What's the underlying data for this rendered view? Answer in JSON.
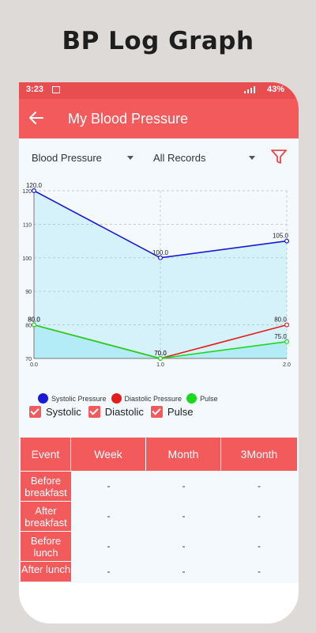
{
  "promo": {
    "title": "BP Log Graph"
  },
  "statusbar": {
    "time": "3:23",
    "battery": "43%"
  },
  "appbar": {
    "title": "My Blood Pressure"
  },
  "filters": {
    "type_selected": "Blood Pressure",
    "range_selected": "All Records"
  },
  "chart_data": {
    "type": "line",
    "x": [
      0.0,
      1.0,
      2.0
    ],
    "x_tick_labels": [
      "0.0",
      "1.0",
      "2.0"
    ],
    "y_tick_labels": [
      "70",
      "80",
      "90",
      "100",
      "110",
      "120"
    ],
    "ylim": [
      70,
      120
    ],
    "xlim": [
      0,
      2
    ],
    "grid": true,
    "legend_position": "bottom-left",
    "series": [
      {
        "name": "Systolic Pressure",
        "values": [
          120.0,
          100.0,
          105.0
        ],
        "labels": [
          "120.0",
          "100.0",
          "105.0"
        ],
        "color": "#1a1ad6",
        "fill": "#d5f1fa"
      },
      {
        "name": "Diastolic Pressure",
        "values": [
          80.0,
          70.0,
          80.0
        ],
        "labels": [
          "80.0",
          "70.0",
          "80.0"
        ],
        "color": "#e51c1c"
      },
      {
        "name": "Pulse",
        "values": [
          80.0,
          70.0,
          75.0
        ],
        "labels": [
          "80.0",
          "70.0",
          "75.0"
        ],
        "color": "#1ed81e",
        "fill": "#b3ecf7"
      }
    ]
  },
  "checks": [
    {
      "label": "Systolic",
      "checked": true
    },
    {
      "label": "Diastolic",
      "checked": true
    },
    {
      "label": "Pulse",
      "checked": true
    }
  ],
  "table": {
    "headers": [
      "Event",
      "Week",
      "Month",
      "3Month"
    ],
    "rows": [
      {
        "event": "Before breakfast",
        "week": "-",
        "month": "-",
        "three_month": "-"
      },
      {
        "event": "After breakfast",
        "week": "-",
        "month": "-",
        "three_month": "-"
      },
      {
        "event": "Before lunch",
        "week": "-",
        "month": "-",
        "three_month": "-"
      },
      {
        "event": "After lunch",
        "week": "-",
        "month": "-",
        "three_month": "-"
      }
    ]
  },
  "colors": {
    "accent": "#f25a5c",
    "statusbar": "#e84d50"
  }
}
